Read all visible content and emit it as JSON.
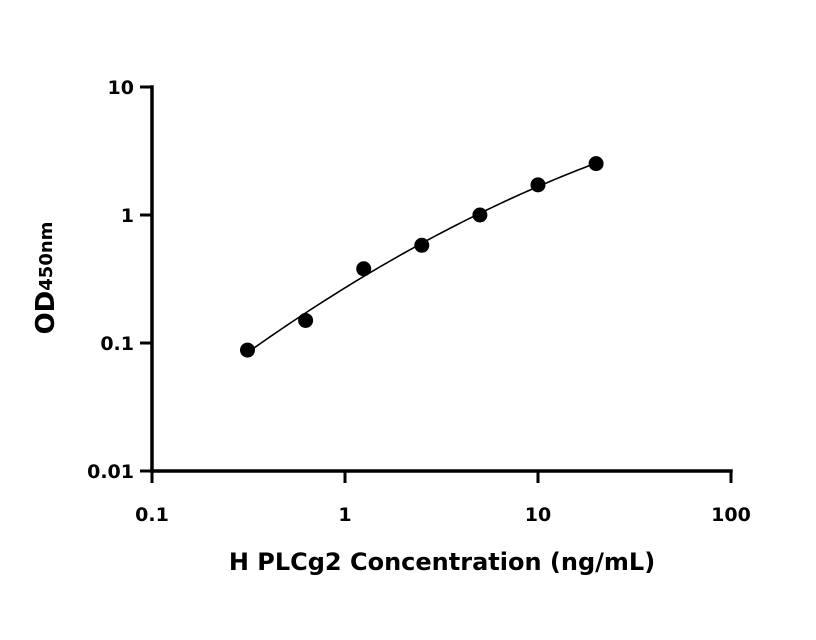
{
  "chart_data": {
    "type": "scatter",
    "xlabel": "H PLCg2 Concentration (ng/mL)",
    "ylabel": "OD",
    "ylabel_subscript": "450nm",
    "x_scale": "log",
    "y_scale": "log",
    "xlim": [
      0.1,
      100
    ],
    "ylim": [
      0.01,
      10
    ],
    "x_ticks": [
      0.1,
      1,
      10,
      100
    ],
    "x_tick_labels": [
      "0.1",
      "1",
      "10",
      "100"
    ],
    "y_ticks": [
      0.01,
      0.1,
      1,
      10
    ],
    "y_tick_labels": [
      "0.01",
      "0.1",
      "1",
      "10"
    ],
    "grid": false,
    "legend": false,
    "series": [
      {
        "x": [
          0.3125,
          0.625,
          1.25,
          2.5,
          5,
          10,
          20
        ],
        "y": [
          0.088,
          0.15,
          0.38,
          0.58,
          1.0,
          1.72,
          2.52
        ]
      }
    ],
    "fit_curve": true
  }
}
